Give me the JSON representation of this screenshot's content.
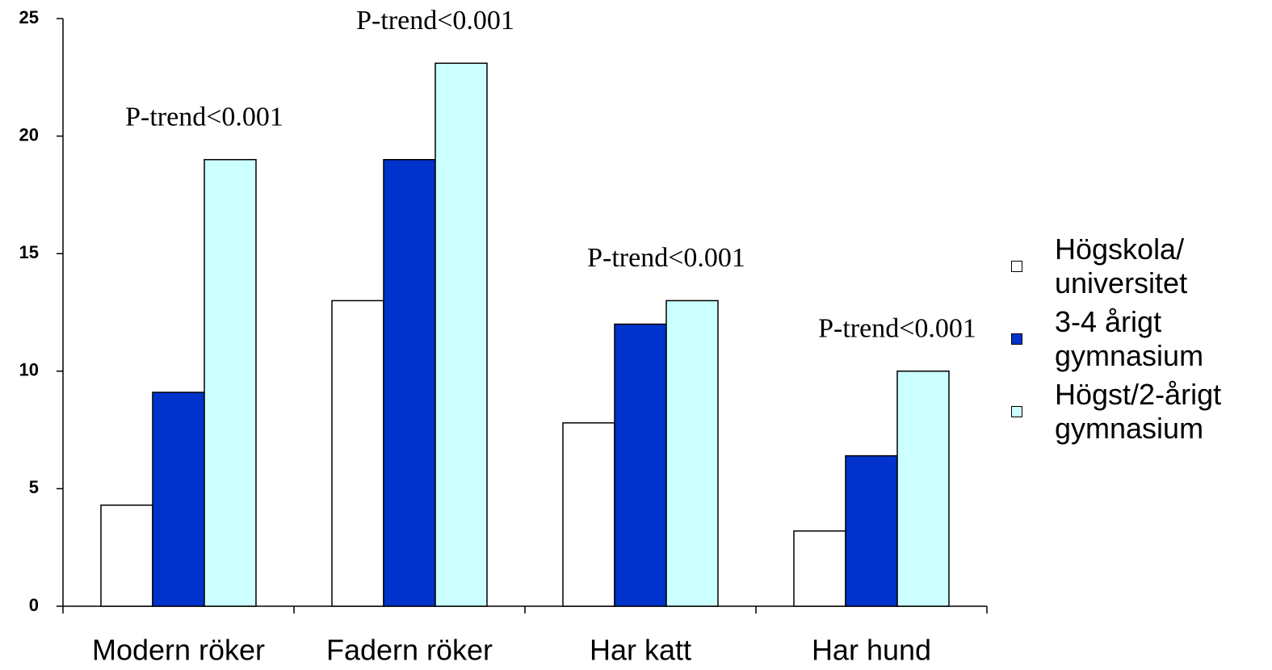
{
  "chart_data": {
    "type": "bar",
    "categories": [
      "Modern röker",
      "Fadern röker",
      "Har katt",
      "Har hund"
    ],
    "series": [
      {
        "name": "Högskola/ universitet",
        "color": "#ffffff",
        "values": [
          4.3,
          13,
          7.8,
          3.2
        ]
      },
      {
        "name": "3-4 årigt gymnasium",
        "color": "#0033cc",
        "values": [
          9.1,
          19,
          12,
          6.4
        ]
      },
      {
        "name": "Högst/2-årigt gymnasium",
        "color": "#ccffff",
        "values": [
          19,
          23.1,
          13,
          10
        ]
      }
    ],
    "annotations": [
      "P-trend<0.001",
      "P-trend<0.001",
      "P-trend<0.001",
      "P-trend<0.001"
    ],
    "ylim": [
      0,
      25
    ],
    "yticks": [
      0,
      5,
      10,
      15,
      20,
      25
    ],
    "grid": false,
    "legend": "right"
  }
}
